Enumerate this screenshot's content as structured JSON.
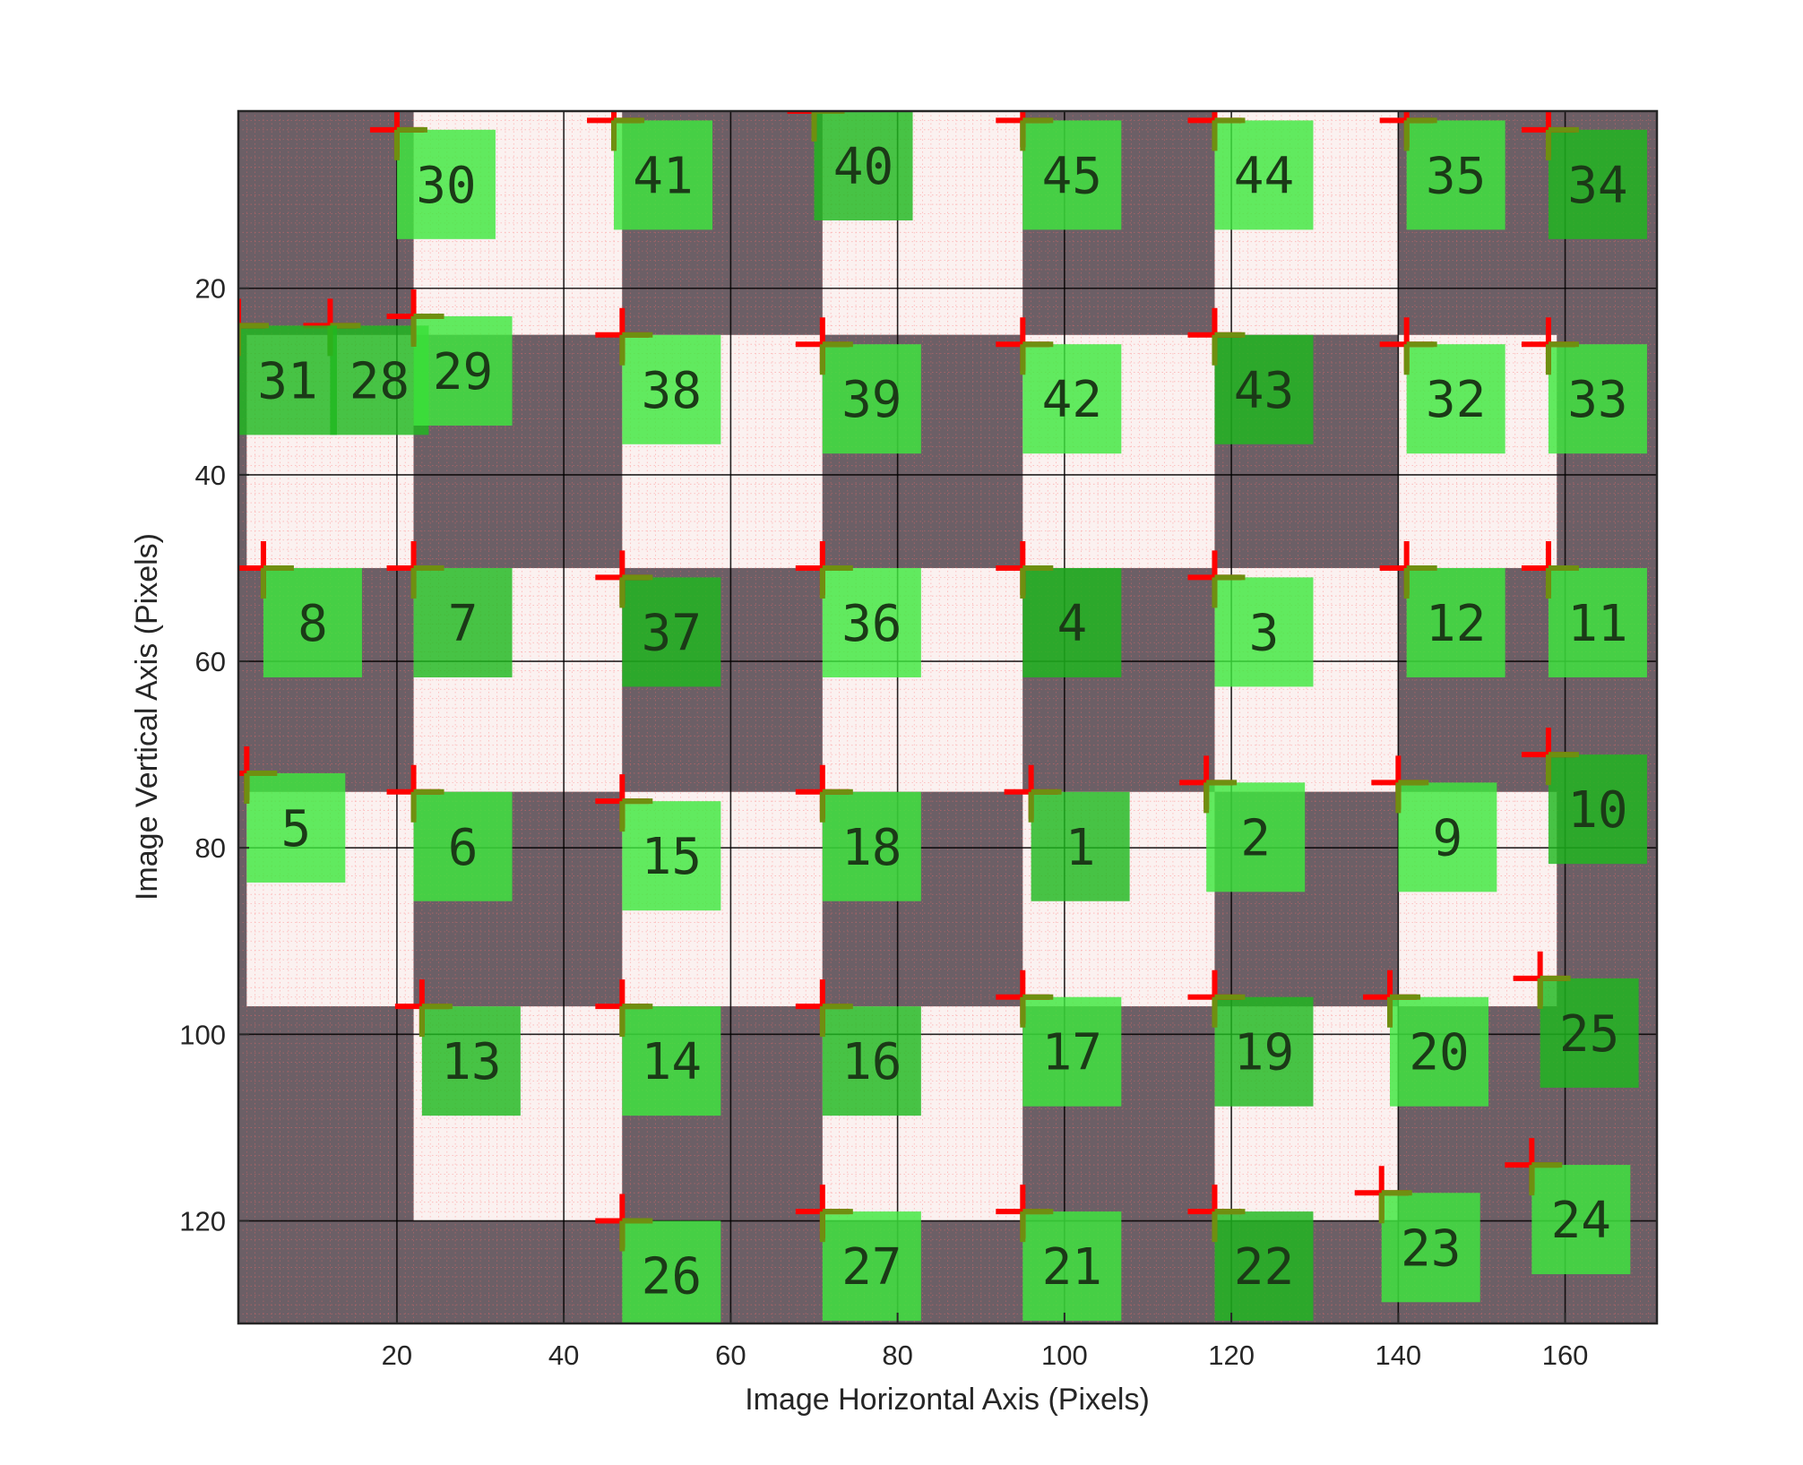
{
  "chart_data": {
    "type": "scatter",
    "xlabel": "Image Horizontal Axis (Pixels)",
    "ylabel": "Image Vertical Axis (Pixels)",
    "xlim": [
      1,
      171
    ],
    "ylim": [
      131,
      1
    ],
    "y_reversed": true,
    "grid": true,
    "x_ticks": [
      20,
      40,
      60,
      80,
      100,
      120,
      140,
      160
    ],
    "y_ticks": [
      20,
      40,
      60,
      80,
      100,
      120
    ],
    "background": "checkerboard image",
    "colors": {
      "marker": "#ff0000",
      "label_box": "#3ee83e",
      "dark_square": "#6c5f66",
      "light_square": "#fbf1f0",
      "grid": "#000000"
    },
    "corner_points": [
      {
        "id": "1",
        "x": 96,
        "y": 74
      },
      {
        "id": "2",
        "x": 117,
        "y": 73
      },
      {
        "id": "3",
        "x": 118,
        "y": 51
      },
      {
        "id": "4",
        "x": 95,
        "y": 50
      },
      {
        "id": "5",
        "x": 2,
        "y": 72
      },
      {
        "id": "6",
        "x": 22,
        "y": 74
      },
      {
        "id": "7",
        "x": 22,
        "y": 50
      },
      {
        "id": "8",
        "x": 4,
        "y": 50
      },
      {
        "id": "9",
        "x": 140,
        "y": 73
      },
      {
        "id": "10",
        "x": 158,
        "y": 70
      },
      {
        "id": "11",
        "x": 158,
        "y": 50
      },
      {
        "id": "12",
        "x": 141,
        "y": 50
      },
      {
        "id": "13",
        "x": 23,
        "y": 97
      },
      {
        "id": "14",
        "x": 47,
        "y": 97
      },
      {
        "id": "15",
        "x": 47,
        "y": 75
      },
      {
        "id": "16",
        "x": 71,
        "y": 97
      },
      {
        "id": "17",
        "x": 95,
        "y": 96
      },
      {
        "id": "18",
        "x": 71,
        "y": 74
      },
      {
        "id": "19",
        "x": 118,
        "y": 96
      },
      {
        "id": "20",
        "x": 139,
        "y": 96
      },
      {
        "id": "21",
        "x": 95,
        "y": 119
      },
      {
        "id": "22",
        "x": 118,
        "y": 119
      },
      {
        "id": "23",
        "x": 138,
        "y": 117
      },
      {
        "id": "24",
        "x": 156,
        "y": 114
      },
      {
        "id": "25",
        "x": 157,
        "y": 94
      },
      {
        "id": "26",
        "x": 47,
        "y": 120
      },
      {
        "id": "27",
        "x": 71,
        "y": 119
      },
      {
        "id": "28",
        "x": 12,
        "y": 24
      },
      {
        "id": "29",
        "x": 22,
        "y": 23
      },
      {
        "id": "30",
        "x": 20,
        "y": 3
      },
      {
        "id": "31",
        "x": 1,
        "y": 24
      },
      {
        "id": "32",
        "x": 141,
        "y": 26
      },
      {
        "id": "33",
        "x": 158,
        "y": 26
      },
      {
        "id": "34",
        "x": 158,
        "y": 3
      },
      {
        "id": "35",
        "x": 141,
        "y": 2
      },
      {
        "id": "36",
        "x": 71,
        "y": 50
      },
      {
        "id": "37",
        "x": 47,
        "y": 51
      },
      {
        "id": "38",
        "x": 47,
        "y": 25
      },
      {
        "id": "39",
        "x": 71,
        "y": 26
      },
      {
        "id": "40",
        "x": 70,
        "y": 1
      },
      {
        "id": "41",
        "x": 46,
        "y": 2
      },
      {
        "id": "42",
        "x": 95,
        "y": 26
      },
      {
        "id": "43",
        "x": 118,
        "y": 25
      },
      {
        "id": "44",
        "x": 118,
        "y": 2
      },
      {
        "id": "45",
        "x": 95,
        "y": 2
      }
    ]
  }
}
